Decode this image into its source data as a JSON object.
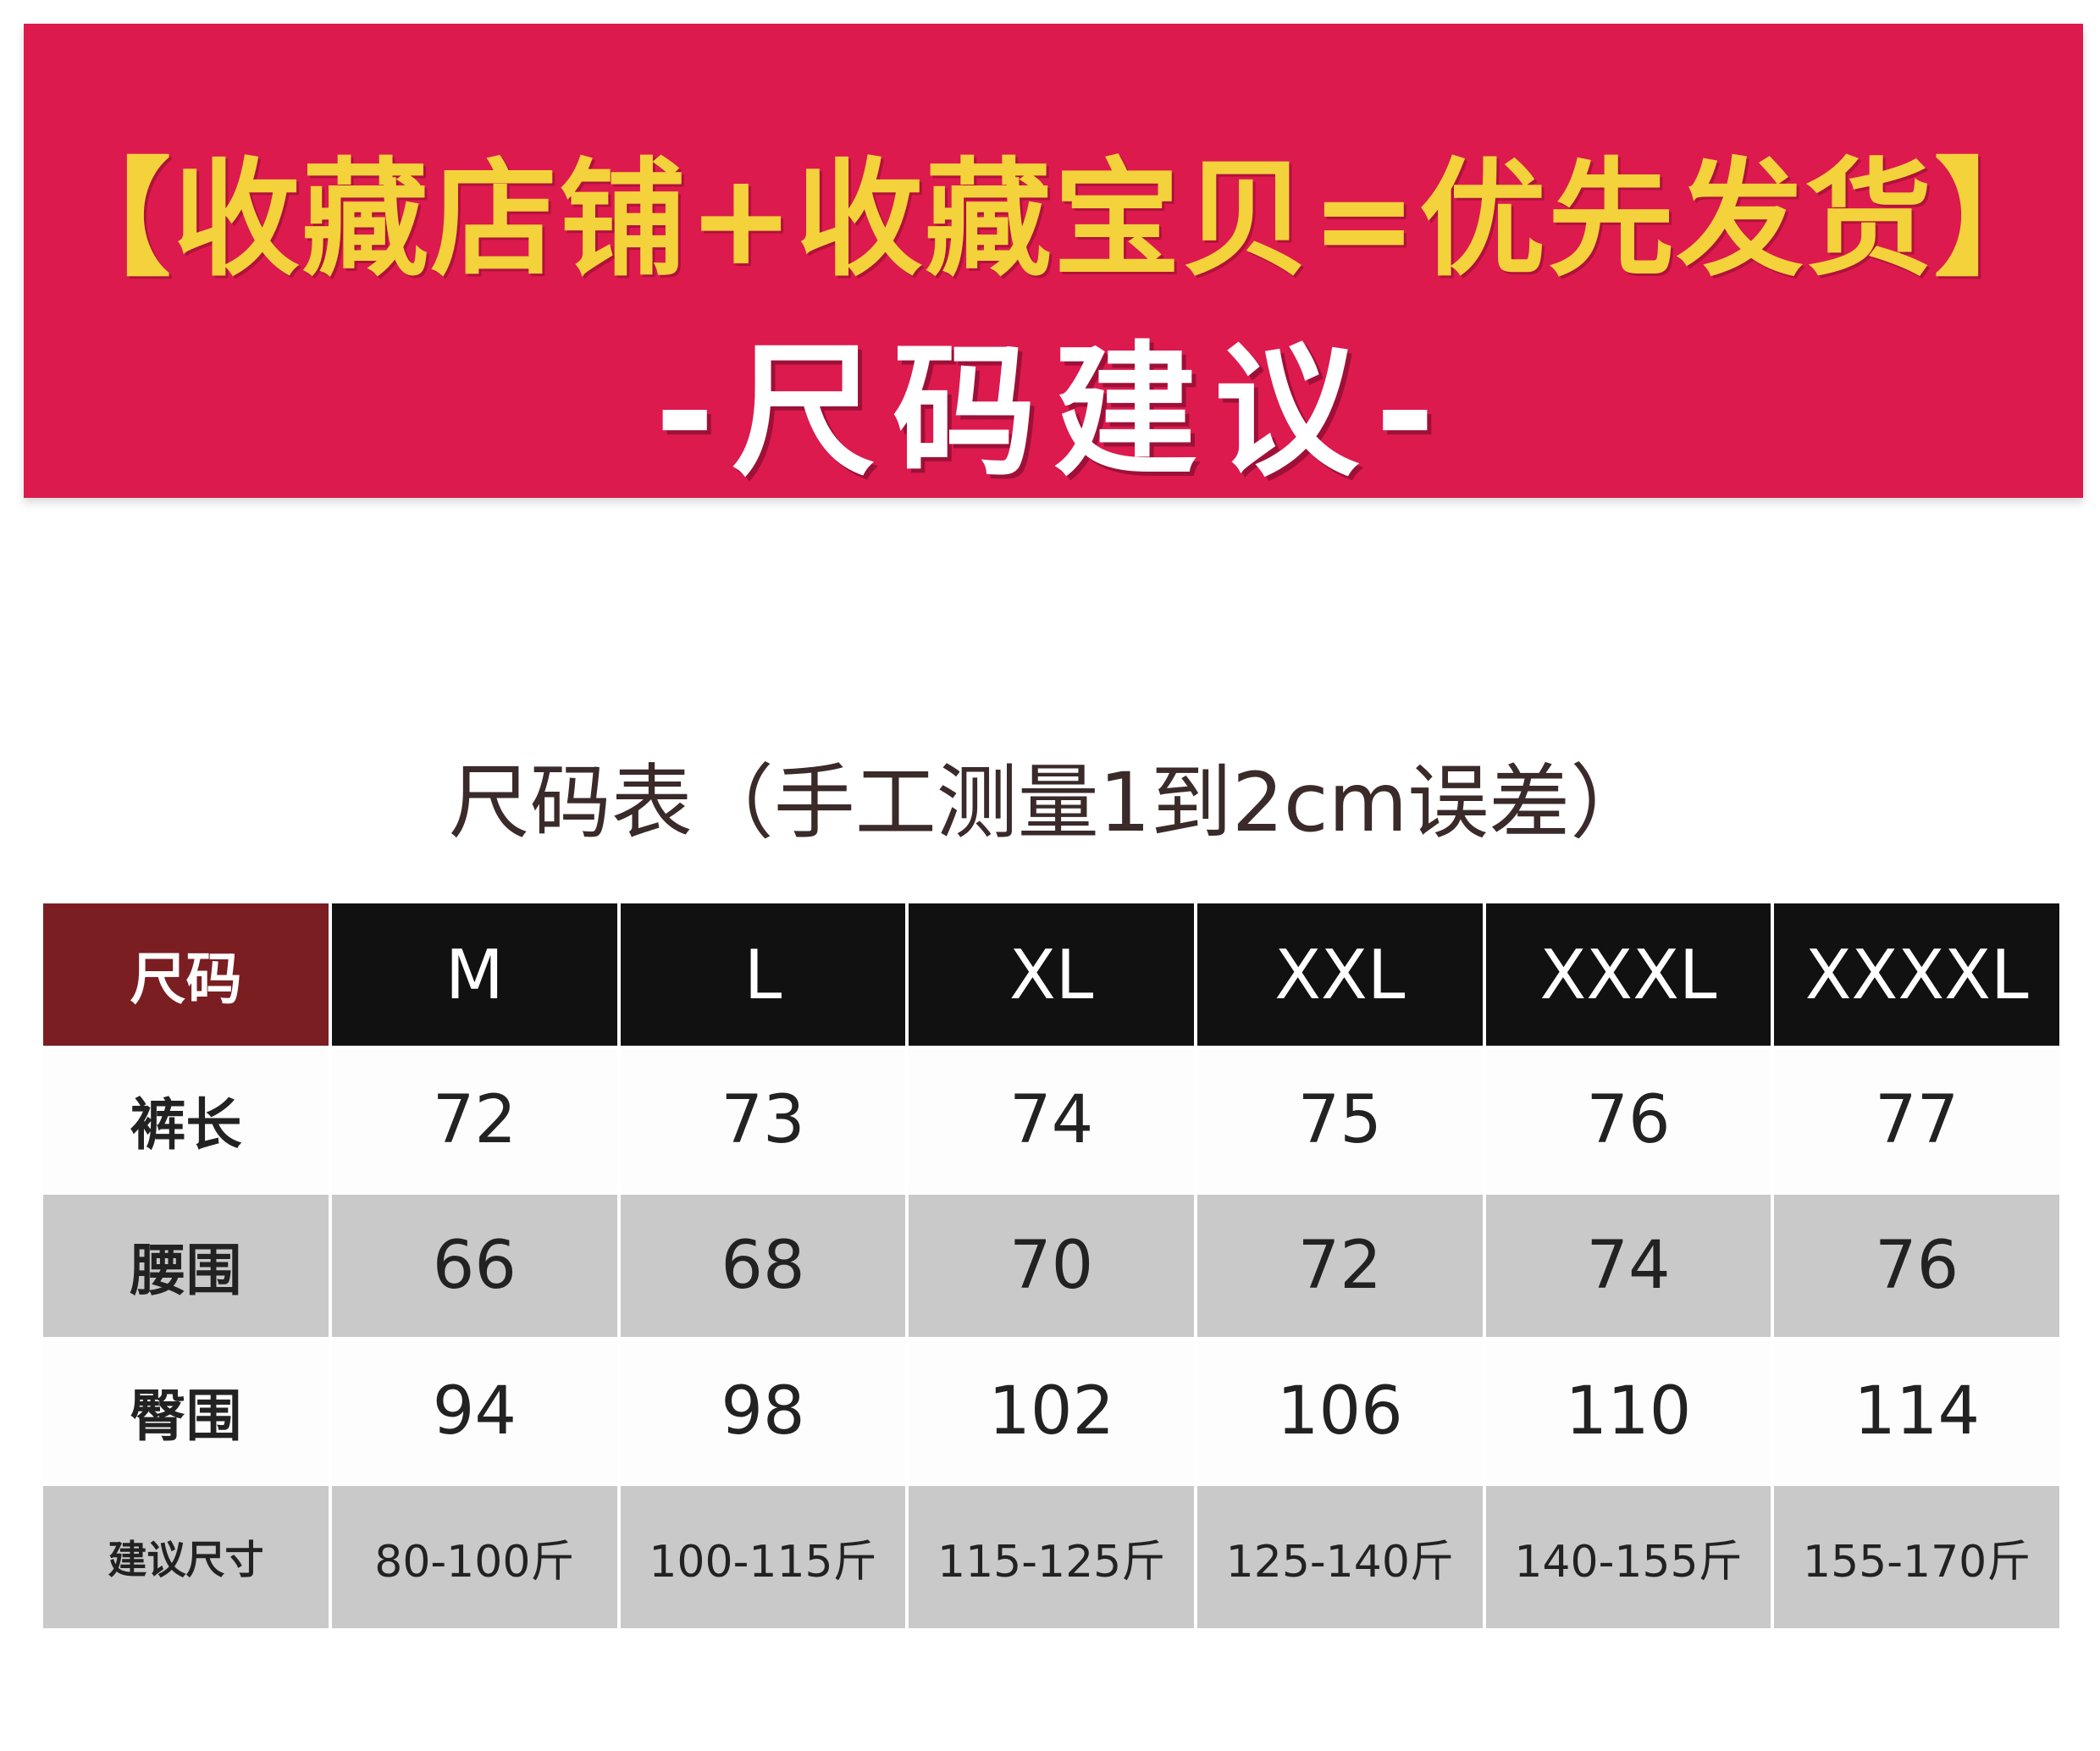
{
  "banner": {
    "promo": "【收藏店铺+收藏宝贝=优先发货】",
    "subtitle": "-尺码建议-",
    "colors": {
      "background": "#dc1a4e",
      "promo_text": "#f4d23c",
      "subtitle_text": "#ffffff"
    }
  },
  "table_title": "尺码表（手工测量1到2cm误差）",
  "size_table": {
    "corner": "尺码",
    "sizes": [
      "M",
      "L",
      "XL",
      "XXL",
      "XXXL",
      "XXXXL"
    ],
    "rows": [
      {
        "label": "裤长",
        "values": [
          "72",
          "73",
          "74",
          "75",
          "76",
          "77"
        ]
      },
      {
        "label": "腰围",
        "values": [
          "66",
          "68",
          "70",
          "72",
          "74",
          "76"
        ]
      },
      {
        "label": "臀围",
        "values": [
          "94",
          "98",
          "102",
          "106",
          "110",
          "114"
        ]
      },
      {
        "label": "建议尺寸",
        "values": [
          "80-100斤",
          "100-115斤",
          "115-125斤",
          "125-140斤",
          "140-155斤",
          "155-170斤"
        ]
      }
    ]
  }
}
